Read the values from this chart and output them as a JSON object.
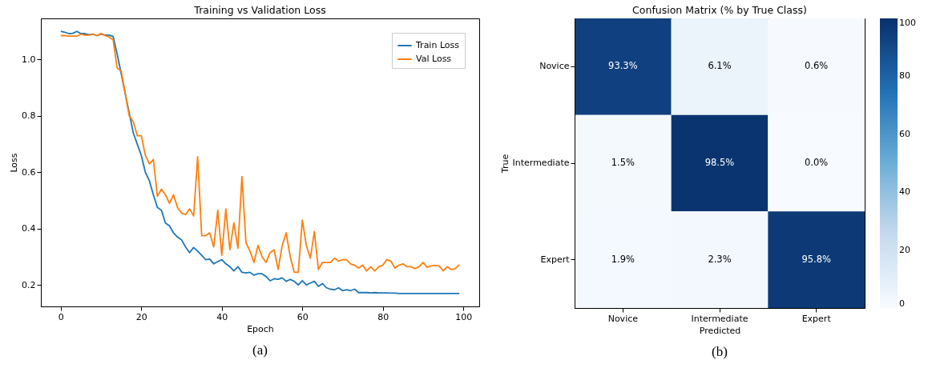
{
  "chart_data": [
    {
      "type": "line",
      "title": "Training vs Validation Loss",
      "xlabel": "Epoch",
      "ylabel": "Loss",
      "x": [
        0,
        1,
        2,
        3,
        4,
        5,
        6,
        7,
        8,
        9,
        10,
        11,
        12,
        13,
        14,
        15,
        16,
        17,
        18,
        19,
        20,
        21,
        22,
        23,
        24,
        25,
        26,
        27,
        28,
        29,
        30,
        31,
        32,
        33,
        34,
        35,
        36,
        37,
        38,
        39,
        40,
        41,
        42,
        43,
        44,
        45,
        46,
        47,
        48,
        49,
        50,
        51,
        52,
        53,
        54,
        55,
        56,
        57,
        58,
        59,
        60,
        61,
        62,
        63,
        64,
        65,
        66,
        67,
        68,
        69,
        70,
        71,
        72,
        73,
        74,
        75,
        76,
        77,
        78,
        79,
        80,
        81,
        82,
        83,
        84,
        85,
        86,
        87,
        88,
        89,
        90,
        91,
        92,
        93,
        94,
        95,
        96,
        97,
        98,
        99
      ],
      "series": [
        {
          "name": "Train Loss",
          "color": "#1f77b4",
          "values": [
            1.1,
            1.097,
            1.092,
            1.093,
            1.1,
            1.092,
            1.092,
            1.088,
            1.09,
            1.085,
            1.09,
            1.087,
            1.087,
            1.082,
            1.02,
            0.95,
            0.88,
            0.81,
            0.74,
            0.7,
            0.66,
            0.6,
            0.57,
            0.52,
            0.475,
            0.465,
            0.42,
            0.41,
            0.385,
            0.37,
            0.36,
            0.335,
            0.315,
            0.333,
            0.32,
            0.305,
            0.29,
            0.292,
            0.275,
            0.283,
            0.29,
            0.275,
            0.265,
            0.25,
            0.265,
            0.245,
            0.243,
            0.245,
            0.235,
            0.24,
            0.24,
            0.23,
            0.215,
            0.222,
            0.22,
            0.225,
            0.213,
            0.22,
            0.213,
            0.2,
            0.215,
            0.2,
            0.207,
            0.213,
            0.195,
            0.205,
            0.19,
            0.185,
            0.183,
            0.19,
            0.18,
            0.183,
            0.18,
            0.185,
            0.173,
            0.173,
            0.173,
            0.172,
            0.173,
            0.172,
            0.172,
            0.172,
            0.171,
            0.171,
            0.17,
            0.17,
            0.17,
            0.17,
            0.17,
            0.17,
            0.17,
            0.17,
            0.17,
            0.17,
            0.17,
            0.17,
            0.17,
            0.17,
            0.17,
            0.17
          ]
        },
        {
          "name": "Val Loss",
          "color": "#ff7f0e",
          "values": [
            1.085,
            1.085,
            1.083,
            1.083,
            1.083,
            1.09,
            1.087,
            1.087,
            1.09,
            1.085,
            1.093,
            1.085,
            1.08,
            1.07,
            0.97,
            0.96,
            0.88,
            0.8,
            0.78,
            0.73,
            0.73,
            0.66,
            0.63,
            0.645,
            0.515,
            0.54,
            0.52,
            0.49,
            0.52,
            0.475,
            0.455,
            0.45,
            0.47,
            0.445,
            0.655,
            0.375,
            0.375,
            0.385,
            0.335,
            0.465,
            0.305,
            0.47,
            0.325,
            0.42,
            0.33,
            0.585,
            0.35,
            0.32,
            0.28,
            0.34,
            0.3,
            0.28,
            0.315,
            0.325,
            0.255,
            0.34,
            0.385,
            0.3,
            0.245,
            0.245,
            0.43,
            0.34,
            0.295,
            0.39,
            0.255,
            0.28,
            0.28,
            0.28,
            0.295,
            0.285,
            0.29,
            0.29,
            0.275,
            0.27,
            0.26,
            0.27,
            0.25,
            0.265,
            0.25,
            0.265,
            0.27,
            0.29,
            0.285,
            0.26,
            0.27,
            0.275,
            0.265,
            0.265,
            0.258,
            0.265,
            0.28,
            0.263,
            0.268,
            0.27,
            0.268,
            0.25,
            0.265,
            0.255,
            0.258,
            0.272
          ]
        }
      ],
      "xlim": [
        -4.95,
        103.95
      ],
      "xticks": [
        0,
        20,
        40,
        60,
        80,
        100
      ],
      "ylim": [
        0.124,
        1.146
      ],
      "yticks": [
        0.2,
        0.4,
        0.6,
        0.8,
        {
          "value": 1,
          "label": "1.0"
        }
      ],
      "legend": "top right",
      "annotations": [
        "(a)"
      ]
    },
    {
      "type": "heatmap",
      "title": "Confusion Matrix (% by True Class)",
      "xlabel": "Predicted",
      "ylabel": "True",
      "categories": [
        "Novice",
        "Intermediate",
        "Expert"
      ],
      "y_categories": [
        "Novice",
        "Intermediate",
        "Expert"
      ],
      "cells": [
        [
          93.3,
          6.1,
          0.6
        ],
        [
          1.5,
          98.5,
          0.0
        ],
        [
          1.9,
          2.3,
          95.8
        ]
      ],
      "cell_labels": [
        [
          "93.3%",
          "6.1%",
          "0.6%"
        ],
        [
          "1.5%",
          "98.5%",
          "0.0%"
        ],
        [
          "1.9%",
          "2.3%",
          "95.8%"
        ]
      ],
      "clim": [
        0,
        100
      ],
      "cticks": [
        0,
        20,
        40,
        60,
        80,
        100
      ],
      "annotations": [
        "(b)"
      ]
    }
  ]
}
